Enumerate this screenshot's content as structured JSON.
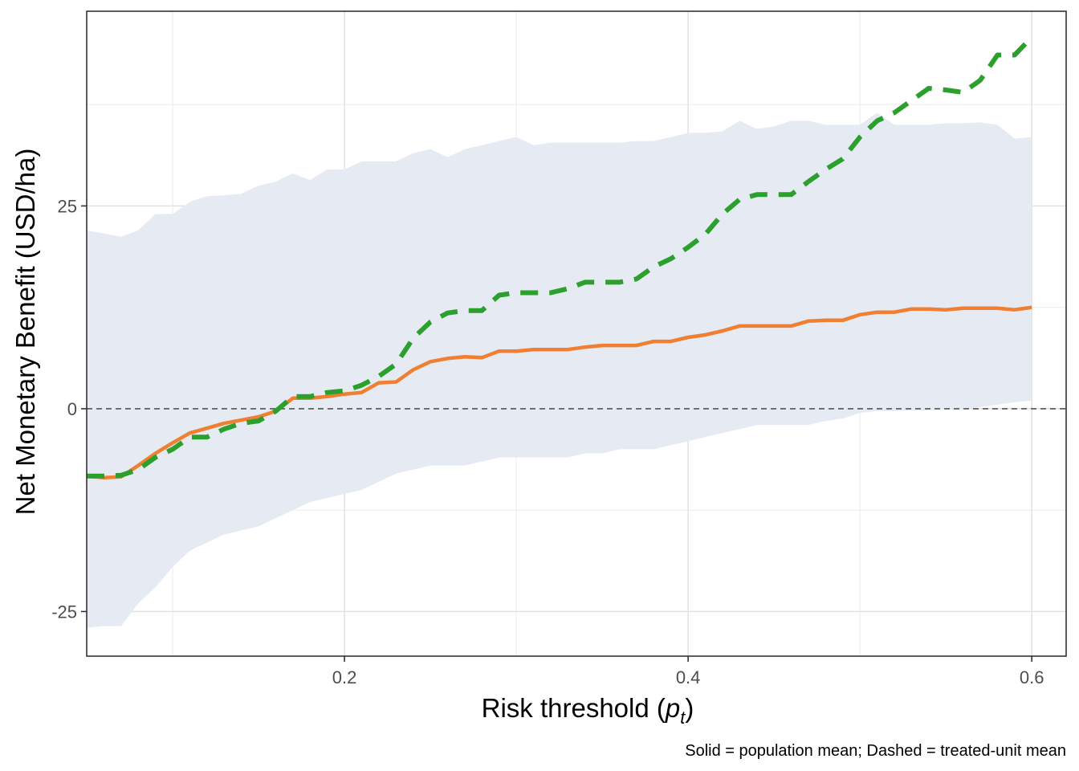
{
  "chart_data": {
    "type": "line",
    "xlabel": "Risk threshold (",
    "xlabel_var": "p",
    "xlabel_sub": "t",
    "xlabel_end": ")",
    "ylabel": "Net Monetary Benefit (USD/ha)",
    "caption": "Solid = population mean; Dashed = treated-unit mean",
    "xlim": [
      0.05,
      0.62
    ],
    "ylim": [
      -30.5,
      49
    ],
    "x_ticks": [
      {
        "value": 0.2,
        "label": "0.2"
      },
      {
        "value": 0.4,
        "label": "0.4"
      },
      {
        "value": 0.6,
        "label": "0.6"
      }
    ],
    "y_ticks": [
      {
        "value": -25,
        "label": "-25"
      },
      {
        "value": 0,
        "label": "0"
      },
      {
        "value": 25,
        "label": "25"
      }
    ],
    "x_minor": [
      0.1,
      0.3,
      0.5
    ],
    "y_minor": [
      -12.5,
      12.5,
      37.5
    ],
    "grid": true,
    "reference_line": {
      "y": 0,
      "style": "dashed",
      "color": "#555555"
    },
    "ribbon": {
      "color": "#e6eaf3",
      "x": [
        0.05,
        0.06,
        0.07,
        0.08,
        0.09,
        0.1,
        0.11,
        0.12,
        0.13,
        0.14,
        0.15,
        0.16,
        0.17,
        0.18,
        0.19,
        0.2,
        0.21,
        0.22,
        0.23,
        0.24,
        0.25,
        0.26,
        0.27,
        0.28,
        0.29,
        0.3,
        0.31,
        0.32,
        0.33,
        0.34,
        0.35,
        0.36,
        0.37,
        0.38,
        0.39,
        0.4,
        0.41,
        0.42,
        0.43,
        0.44,
        0.45,
        0.46,
        0.47,
        0.48,
        0.49,
        0.5,
        0.51,
        0.52,
        0.53,
        0.54,
        0.55,
        0.56,
        0.57,
        0.58,
        0.59,
        0.6
      ],
      "upper": [
        22.0,
        21.6,
        21.2,
        22.0,
        24.0,
        24.0,
        25.5,
        26.2,
        26.3,
        26.5,
        27.5,
        28.0,
        29.0,
        28.2,
        29.5,
        29.5,
        30.5,
        30.5,
        30.5,
        31.5,
        32.0,
        31.0,
        32.0,
        32.5,
        33.0,
        33.5,
        32.5,
        32.8,
        32.8,
        32.8,
        32.8,
        32.8,
        33.0,
        33.0,
        33.5,
        34.0,
        34.0,
        34.2,
        35.5,
        34.5,
        34.8,
        35.5,
        35.5,
        35.0,
        35.0,
        35.0,
        36.5,
        35.0,
        35.0,
        35.0,
        35.2,
        35.2,
        35.3,
        35.0,
        33.3,
        33.5
      ],
      "lower": [
        -27.0,
        -26.8,
        -26.8,
        -24.0,
        -22.0,
        -19.5,
        -17.5,
        -16.5,
        -15.5,
        -15.0,
        -14.5,
        -13.5,
        -12.5,
        -11.5,
        -11.0,
        -10.5,
        -10.0,
        -9.0,
        -8.0,
        -7.5,
        -7.0,
        -7.0,
        -7.0,
        -6.5,
        -6.0,
        -6.0,
        -6.0,
        -6.0,
        -6.0,
        -5.5,
        -5.5,
        -5.0,
        -5.0,
        -5.0,
        -4.5,
        -4.0,
        -3.5,
        -3.0,
        -2.5,
        -2.0,
        -2.0,
        -2.0,
        -2.0,
        -1.5,
        -1.2,
        -0.5,
        -0.3,
        -0.3,
        -0.2,
        -0.2,
        0.0,
        0.0,
        0.2,
        0.5,
        0.8,
        1.0
      ]
    },
    "series": [
      {
        "name": "population mean",
        "style": "solid",
        "color": "#f07f32",
        "x": [
          0.05,
          0.06,
          0.07,
          0.08,
          0.09,
          0.1,
          0.11,
          0.12,
          0.13,
          0.14,
          0.15,
          0.16,
          0.17,
          0.18,
          0.19,
          0.2,
          0.21,
          0.22,
          0.23,
          0.24,
          0.25,
          0.26,
          0.27,
          0.28,
          0.29,
          0.3,
          0.31,
          0.32,
          0.33,
          0.34,
          0.35,
          0.36,
          0.37,
          0.38,
          0.39,
          0.4,
          0.41,
          0.42,
          0.43,
          0.44,
          0.45,
          0.46,
          0.47,
          0.48,
          0.49,
          0.5,
          0.51,
          0.52,
          0.53,
          0.54,
          0.55,
          0.56,
          0.57,
          0.58,
          0.59,
          0.6
        ],
        "y": [
          -8.3,
          -8.5,
          -8.4,
          -7.0,
          -5.5,
          -4.2,
          -3.0,
          -2.4,
          -1.8,
          -1.4,
          -1.0,
          -0.3,
          1.3,
          1.3,
          1.5,
          1.8,
          2.0,
          3.2,
          3.3,
          4.8,
          5.8,
          6.2,
          6.4,
          6.3,
          7.1,
          7.1,
          7.3,
          7.3,
          7.3,
          7.6,
          7.8,
          7.8,
          7.8,
          8.3,
          8.3,
          8.8,
          9.1,
          9.6,
          10.2,
          10.2,
          10.2,
          10.2,
          10.8,
          10.9,
          10.9,
          11.6,
          11.9,
          11.9,
          12.3,
          12.3,
          12.2,
          12.4,
          12.4,
          12.4,
          12.2,
          12.5
        ]
      },
      {
        "name": "treated-unit mean",
        "style": "dashed",
        "color": "#2ca02c",
        "x": [
          0.05,
          0.06,
          0.07,
          0.08,
          0.09,
          0.1,
          0.11,
          0.12,
          0.13,
          0.14,
          0.15,
          0.16,
          0.17,
          0.18,
          0.19,
          0.2,
          0.21,
          0.22,
          0.23,
          0.24,
          0.25,
          0.26,
          0.27,
          0.28,
          0.29,
          0.3,
          0.31,
          0.32,
          0.33,
          0.34,
          0.35,
          0.36,
          0.37,
          0.38,
          0.39,
          0.4,
          0.41,
          0.42,
          0.43,
          0.44,
          0.45,
          0.46,
          0.47,
          0.48,
          0.49,
          0.5,
          0.51,
          0.52,
          0.53,
          0.54,
          0.55,
          0.56,
          0.57,
          0.58,
          0.59,
          0.6
        ],
        "y": [
          -8.3,
          -8.3,
          -8.2,
          -7.5,
          -6.0,
          -5.0,
          -3.5,
          -3.5,
          -2.5,
          -1.8,
          -1.5,
          -0.3,
          1.5,
          1.5,
          2.0,
          2.2,
          2.9,
          4.0,
          5.5,
          8.7,
          10.7,
          11.8,
          12.1,
          12.1,
          14.0,
          14.3,
          14.3,
          14.3,
          14.8,
          15.6,
          15.6,
          15.6,
          16.0,
          17.5,
          18.5,
          19.9,
          21.5,
          24.0,
          25.8,
          26.4,
          26.4,
          26.4,
          28.0,
          29.5,
          30.8,
          33.5,
          35.5,
          36.5,
          38.0,
          39.5,
          39.3,
          39.0,
          40.5,
          43.6,
          43.6,
          45.8
        ]
      }
    ],
    "panel_border": "#333333",
    "grid_color": "#ebebeb"
  }
}
